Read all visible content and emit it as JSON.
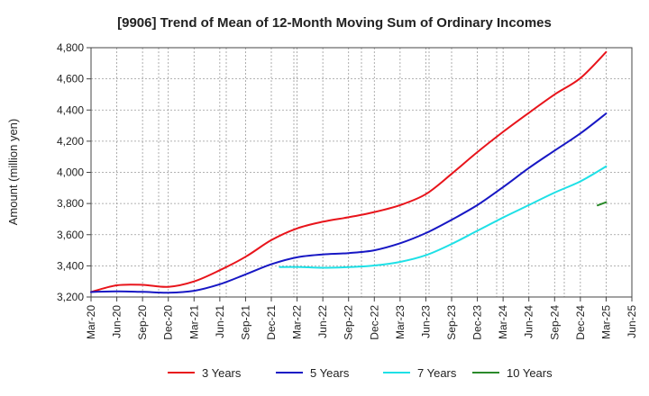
{
  "chart_data": {
    "type": "line",
    "title": "[9906]  Trend of Mean of 12-Month Moving Sum of Ordinary Incomes",
    "xlabel": "",
    "ylabel": "Amount (million yen)",
    "ylim": [
      3200,
      4800
    ],
    "yticks": [
      3200,
      3400,
      3600,
      3800,
      4000,
      4200,
      4400,
      4600,
      4800
    ],
    "ytick_labels": [
      "3,200",
      "3,400",
      "3,600",
      "3,800",
      "4,000",
      "4,200",
      "4,400",
      "4,600",
      "4,800"
    ],
    "xticks": [
      "Mar-20",
      "Jun-20",
      "Sep-20",
      "Dec-20",
      "Mar-21",
      "Jun-21",
      "Sep-21",
      "Dec-21",
      "Mar-22",
      "Jun-22",
      "Sep-22",
      "Dec-22",
      "Mar-23",
      "Jun-23",
      "Sep-23",
      "Dec-23",
      "Mar-24",
      "Jun-24",
      "Sep-24",
      "Dec-24",
      "Mar-25",
      "Jun-25"
    ],
    "grid": true,
    "legend_position": "bottom",
    "series": [
      {
        "name": "3 Years",
        "color": "#e8141b",
        "points": [
          [
            0,
            3232
          ],
          [
            1,
            3275
          ],
          [
            2,
            3278
          ],
          [
            3,
            3265
          ],
          [
            4,
            3300
          ],
          [
            5,
            3372
          ],
          [
            6,
            3458
          ],
          [
            7,
            3565
          ],
          [
            8,
            3640
          ],
          [
            9,
            3683
          ],
          [
            10,
            3712
          ],
          [
            11,
            3745
          ],
          [
            12,
            3790
          ],
          [
            13,
            3860
          ],
          [
            14,
            3990
          ],
          [
            15,
            4130
          ],
          [
            16,
            4260
          ],
          [
            17,
            4382
          ],
          [
            18,
            4500
          ],
          [
            19,
            4605
          ],
          [
            20,
            4772
          ]
        ]
      },
      {
        "name": "5 Years",
        "color": "#1717c4",
        "points": [
          [
            0,
            3232
          ],
          [
            1,
            3236
          ],
          [
            2,
            3233
          ],
          [
            3,
            3228
          ],
          [
            4,
            3240
          ],
          [
            5,
            3282
          ],
          [
            6,
            3345
          ],
          [
            7,
            3410
          ],
          [
            8,
            3455
          ],
          [
            9,
            3473
          ],
          [
            10,
            3482
          ],
          [
            11,
            3500
          ],
          [
            12,
            3545
          ],
          [
            13,
            3610
          ],
          [
            14,
            3695
          ],
          [
            15,
            3790
          ],
          [
            16,
            3905
          ],
          [
            17,
            4028
          ],
          [
            18,
            4140
          ],
          [
            19,
            4250
          ],
          [
            20,
            4378
          ]
        ]
      },
      {
        "name": "7 Years",
        "color": "#1ee0e6",
        "points": [
          [
            7.33,
            3392
          ],
          [
            8,
            3393
          ],
          [
            9,
            3388
          ],
          [
            10,
            3392
          ],
          [
            11,
            3402
          ],
          [
            12,
            3425
          ],
          [
            13,
            3468
          ],
          [
            14,
            3540
          ],
          [
            15,
            3625
          ],
          [
            16,
            3710
          ],
          [
            17,
            3790
          ],
          [
            18,
            3870
          ],
          [
            19,
            3942
          ],
          [
            20,
            4038
          ]
        ]
      },
      {
        "name": "10 Years",
        "color": "#2a8a2a",
        "points": [
          [
            19.67,
            3788
          ],
          [
            20,
            3808
          ]
        ]
      }
    ]
  }
}
